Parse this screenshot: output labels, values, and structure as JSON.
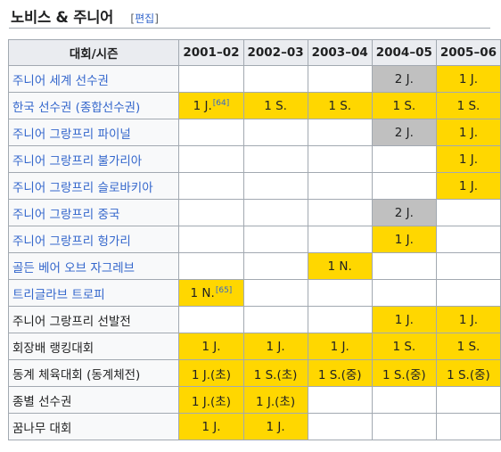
{
  "section": {
    "title": "노비스 & 주니어",
    "edit_open": "[",
    "edit_label": "편집",
    "edit_close": "]"
  },
  "table": {
    "header_event": "대회/시즌",
    "seasons": [
      "2001–02",
      "2002–03",
      "2003–04",
      "2004–05",
      "2005–06"
    ],
    "rows": [
      {
        "event": "주니어 세계 선수권",
        "link": true,
        "cells": [
          {
            "text": "",
            "medal": "none"
          },
          {
            "text": "",
            "medal": "none"
          },
          {
            "text": "",
            "medal": "none"
          },
          {
            "text": "2 J.",
            "medal": "silver"
          },
          {
            "text": "1 J.",
            "medal": "gold"
          }
        ]
      },
      {
        "event": "한국 선수권 (종합선수권)",
        "link": true,
        "cells": [
          {
            "text": "1 J.",
            "medal": "gold",
            "ref": "[64]"
          },
          {
            "text": "1 S.",
            "medal": "gold"
          },
          {
            "text": "1 S.",
            "medal": "gold"
          },
          {
            "text": "1 S.",
            "medal": "gold"
          },
          {
            "text": "1 S.",
            "medal": "gold"
          }
        ]
      },
      {
        "event": "주니어 그랑프리 파이널",
        "link": true,
        "cells": [
          {
            "text": "",
            "medal": "none"
          },
          {
            "text": "",
            "medal": "none"
          },
          {
            "text": "",
            "medal": "none"
          },
          {
            "text": "2 J.",
            "medal": "silver"
          },
          {
            "text": "1 J.",
            "medal": "gold"
          }
        ]
      },
      {
        "event": "주니어 그랑프리 불가리아",
        "link": true,
        "cells": [
          {
            "text": "",
            "medal": "none"
          },
          {
            "text": "",
            "medal": "none"
          },
          {
            "text": "",
            "medal": "none"
          },
          {
            "text": "",
            "medal": "none"
          },
          {
            "text": "1 J.",
            "medal": "gold"
          }
        ]
      },
      {
        "event": "주니어 그랑프리 슬로바키아",
        "link": true,
        "cells": [
          {
            "text": "",
            "medal": "none"
          },
          {
            "text": "",
            "medal": "none"
          },
          {
            "text": "",
            "medal": "none"
          },
          {
            "text": "",
            "medal": "none"
          },
          {
            "text": "1 J.",
            "medal": "gold"
          }
        ]
      },
      {
        "event": "주니어 그랑프리 중국",
        "link": true,
        "cells": [
          {
            "text": "",
            "medal": "none"
          },
          {
            "text": "",
            "medal": "none"
          },
          {
            "text": "",
            "medal": "none"
          },
          {
            "text": "2 J.",
            "medal": "silver"
          },
          {
            "text": "",
            "medal": "none"
          }
        ]
      },
      {
        "event": "주니어 그랑프리 헝가리",
        "link": true,
        "cells": [
          {
            "text": "",
            "medal": "none"
          },
          {
            "text": "",
            "medal": "none"
          },
          {
            "text": "",
            "medal": "none"
          },
          {
            "text": "1 J.",
            "medal": "gold"
          },
          {
            "text": "",
            "medal": "none"
          }
        ]
      },
      {
        "event": "골든 베어 오브 자그레브",
        "link": true,
        "cells": [
          {
            "text": "",
            "medal": "none"
          },
          {
            "text": "",
            "medal": "none"
          },
          {
            "text": "1 N.",
            "medal": "gold"
          },
          {
            "text": "",
            "medal": "none"
          },
          {
            "text": "",
            "medal": "none"
          }
        ]
      },
      {
        "event": "트리글라브 트로피",
        "link": true,
        "cells": [
          {
            "text": "1 N.",
            "medal": "gold",
            "ref": "[65]"
          },
          {
            "text": "",
            "medal": "none"
          },
          {
            "text": "",
            "medal": "none"
          },
          {
            "text": "",
            "medal": "none"
          },
          {
            "text": "",
            "medal": "none"
          }
        ]
      },
      {
        "event": "주니어 그랑프리 선발전",
        "link": false,
        "cells": [
          {
            "text": "",
            "medal": "none"
          },
          {
            "text": "",
            "medal": "none"
          },
          {
            "text": "",
            "medal": "none"
          },
          {
            "text": "1 J.",
            "medal": "gold"
          },
          {
            "text": "1 J.",
            "medal": "gold"
          }
        ]
      },
      {
        "event": "회장배 랭킹대회",
        "link": false,
        "cells": [
          {
            "text": "1 J.",
            "medal": "gold"
          },
          {
            "text": "1 J.",
            "medal": "gold"
          },
          {
            "text": "1 J.",
            "medal": "gold"
          },
          {
            "text": "1 S.",
            "medal": "gold"
          },
          {
            "text": "1 S.",
            "medal": "gold"
          }
        ]
      },
      {
        "event": "동계 체육대회 (동계체전)",
        "link": false,
        "cells": [
          {
            "text": "1 J.(초)",
            "medal": "gold"
          },
          {
            "text": "1 S.(초)",
            "medal": "gold"
          },
          {
            "text": "1 S.(중)",
            "medal": "gold"
          },
          {
            "text": "1 S.(중)",
            "medal": "gold"
          },
          {
            "text": "1 S.(중)",
            "medal": "gold"
          }
        ]
      },
      {
        "event": "종별 선수권",
        "link": false,
        "cells": [
          {
            "text": "1 J.(초)",
            "medal": "gold"
          },
          {
            "text": "1 J.(초)",
            "medal": "gold"
          },
          {
            "text": "",
            "medal": "none"
          },
          {
            "text": "",
            "medal": "none"
          },
          {
            "text": "",
            "medal": "none"
          }
        ]
      },
      {
        "event": "꿈나무 대회",
        "link": false,
        "cells": [
          {
            "text": "1 J.",
            "medal": "gold"
          },
          {
            "text": "1 J.",
            "medal": "gold"
          },
          {
            "text": "",
            "medal": "none"
          },
          {
            "text": "",
            "medal": "none"
          },
          {
            "text": "",
            "medal": "none"
          }
        ]
      }
    ]
  }
}
